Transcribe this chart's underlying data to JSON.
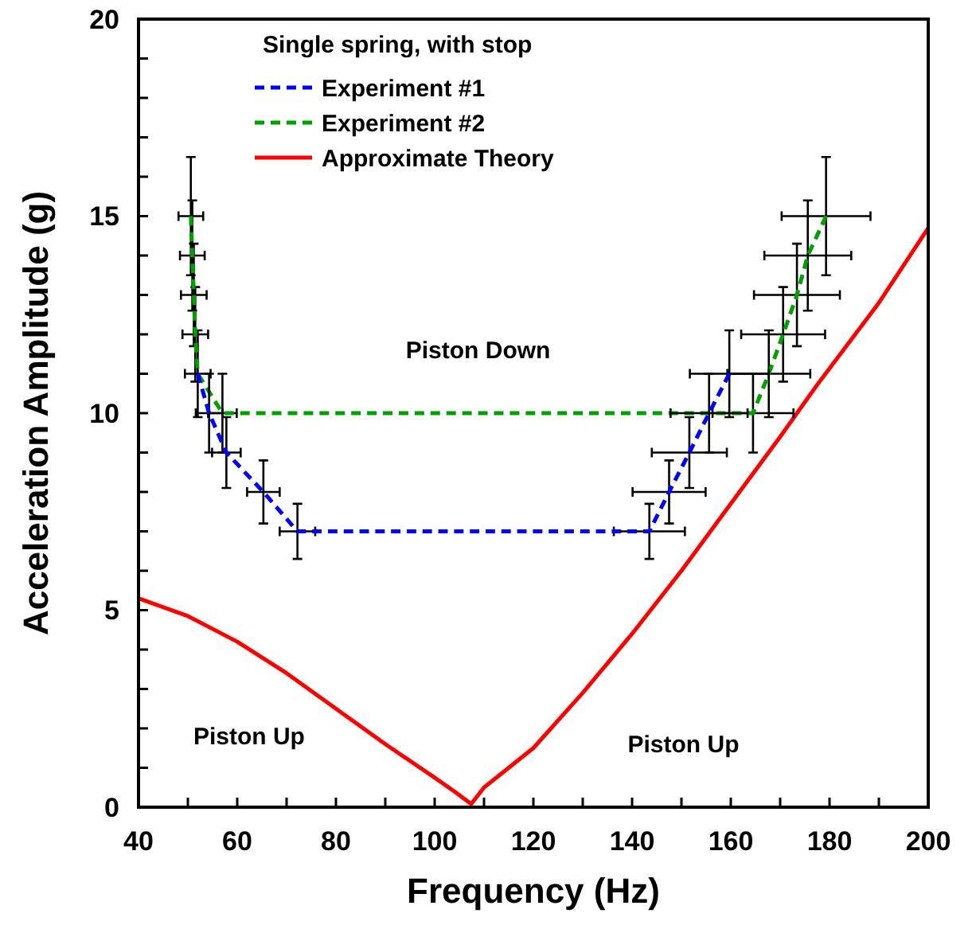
{
  "chart_data": {
    "type": "line",
    "xlabel": "Frequency (Hz)",
    "ylabel": "Acceleration Amplitude (g)",
    "legend_title": "Single spring, with stop",
    "legend": "top",
    "grid": false,
    "marker": "none",
    "xlim": [
      40,
      200
    ],
    "ylim": [
      0,
      20
    ],
    "xticks": [
      40,
      {
        "value": 50,
        "label": null
      },
      60,
      {
        "value": 70,
        "label": null
      },
      80,
      {
        "value": 90,
        "label": null
      },
      100,
      {
        "value": 110,
        "label": null
      },
      120,
      {
        "value": 130,
        "label": null
      },
      140,
      {
        "value": 150,
        "label": null
      },
      160,
      {
        "value": 170,
        "label": null
      },
      180,
      {
        "value": 190,
        "label": null
      },
      200
    ],
    "yticks": [
      0,
      {
        "value": 1,
        "label": null
      },
      {
        "value": 2,
        "label": null
      },
      {
        "value": 3,
        "label": null
      },
      {
        "value": 4,
        "label": null
      },
      5,
      {
        "value": 6,
        "label": null
      },
      {
        "value": 7,
        "label": null
      },
      {
        "value": 8,
        "label": null
      },
      {
        "value": 9,
        "label": null
      },
      10,
      {
        "value": 11,
        "label": null
      },
      {
        "value": 12,
        "label": null
      },
      {
        "value": 13,
        "label": null
      },
      {
        "value": 14,
        "label": null
      },
      15,
      {
        "value": 16,
        "label": null
      },
      {
        "value": 17,
        "label": null
      },
      {
        "value": 18,
        "label": null
      },
      {
        "value": 19,
        "label": null
      },
      20
    ],
    "series": [
      {
        "name": "Experiment #1",
        "color": "#0000ff",
        "line_style": "dashed",
        "x": [
          52,
          54.3,
          57.8,
          65.3,
          72.2,
          143.5,
          147.5,
          151.6,
          155.6,
          159.7
        ],
        "values": [
          11,
          10,
          9,
          8,
          7,
          7,
          8,
          9,
          10,
          11
        ],
        "errors": [
          null,
          1,
          0.9,
          0.8,
          0.7,
          0.7,
          0.8,
          0.9,
          1,
          1.1
        ],
        "xerrors": [
          null,
          2.7,
          2.9,
          3.3,
          3.6,
          7.2,
          7.4,
          7.6,
          7.8,
          8
        ]
      },
      {
        "name": "Experiment #2",
        "color": "#00a000",
        "line_style": "dashed",
        "x": [
          50.6,
          50.9,
          51.2,
          51.5,
          52,
          57,
          164.5,
          167.7,
          170.6,
          173.4,
          175.6,
          179.3
        ],
        "values": [
          15,
          14,
          13,
          12,
          11,
          10,
          10,
          11,
          12,
          13,
          14,
          15
        ],
        "errors": [
          1.5,
          1.4,
          1.3,
          1.2,
          1.1,
          1,
          1,
          1.1,
          1.2,
          1.3,
          1.4,
          1.5
        ],
        "xerrors": [
          2.5,
          2.5,
          2.6,
          2.6,
          2.6,
          2.9,
          8.2,
          8.4,
          8.5,
          8.7,
          8.8,
          9
        ]
      },
      {
        "name": "Approximate Theory",
        "color": "#ff0000",
        "line_style": "solid",
        "x": [
          40,
          50,
          60,
          70,
          80,
          90,
          100,
          104,
          107.4,
          110,
          120,
          130,
          140,
          150,
          160,
          170,
          177.4,
          190,
          200
        ],
        "values": [
          5.3,
          4.85,
          4.2,
          3.4,
          2.5,
          1.6,
          0.75,
          0.4,
          0.08,
          0.5,
          1.5,
          2.9,
          4.4,
          6,
          7.7,
          9.4,
          10.7,
          12.8,
          14.7
        ]
      }
    ],
    "annotations": [
      "Piston Down",
      "Piston Up",
      "Piston Up"
    ]
  }
}
